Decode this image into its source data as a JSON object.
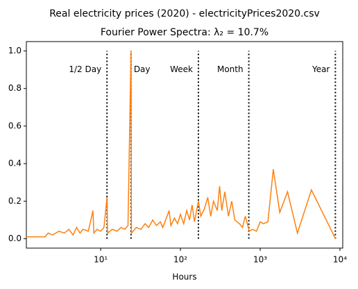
{
  "chart_data": {
    "type": "line",
    "suptitle": "Real electricity prices (2020) - electricityPrices2020.csv",
    "title": "Fourier Power Spectra: λ₂ = 10.7%",
    "x_label": "Hours",
    "x_scale": "log",
    "xlim": [
      1.17,
      10840
    ],
    "xticks": [
      {
        "value": 10,
        "label": "10¹"
      },
      {
        "value": 100,
        "label": "10²"
      },
      {
        "value": 1000,
        "label": "10³"
      },
      {
        "value": 10000,
        "label": "10⁴"
      }
    ],
    "ylim": [
      -0.05,
      1.05
    ],
    "yticks": [
      {
        "value": 0,
        "label": "0.0"
      },
      0.2,
      0.4,
      0.6,
      0.8,
      {
        "value": 1,
        "label": "1.0"
      }
    ],
    "grid": false,
    "vlines": [
      {
        "x": 12,
        "label": "1/2 Day"
      },
      {
        "x": 24,
        "label": "Day"
      },
      {
        "x": 168,
        "label": "Week"
      },
      {
        "x": 720,
        "label": "Month"
      },
      {
        "x": 8760,
        "label": "Year"
      }
    ],
    "series": [
      {
        "color": "#ff7f0e",
        "x": [
          1.17,
          2,
          2.2,
          2.5,
          3,
          3.5,
          4,
          4.5,
          5,
          5.5,
          6,
          7,
          8,
          8.2,
          9,
          10,
          11,
          12,
          12.2,
          14,
          16,
          18,
          20,
          22,
          24,
          24.3,
          28,
          32,
          36,
          40,
          45,
          50,
          56,
          60,
          68,
          72,
          76,
          84,
          92,
          100,
          110,
          120,
          130,
          140,
          150,
          168,
          180,
          200,
          220,
          240,
          260,
          290,
          310,
          330,
          360,
          400,
          440,
          480,
          550,
          600,
          650,
          730,
          800,
          900,
          1000,
          1100,
          1250,
          1460,
          1760,
          2200,
          2930,
          4390,
          8784
        ],
        "values": [
          0.01,
          0.01,
          0.03,
          0.02,
          0.04,
          0.03,
          0.05,
          0.02,
          0.06,
          0.03,
          0.05,
          0.04,
          0.15,
          0.03,
          0.05,
          0.04,
          0.06,
          0.22,
          0.03,
          0.05,
          0.04,
          0.06,
          0.05,
          0.07,
          1.0,
          0.03,
          0.06,
          0.05,
          0.08,
          0.06,
          0.1,
          0.07,
          0.09,
          0.06,
          0.12,
          0.15,
          0.07,
          0.11,
          0.08,
          0.13,
          0.08,
          0.15,
          0.1,
          0.18,
          0.09,
          0.2,
          0.12,
          0.16,
          0.22,
          0.12,
          0.2,
          0.15,
          0.28,
          0.15,
          0.25,
          0.12,
          0.2,
          0.1,
          0.08,
          0.06,
          0.12,
          0.04,
          0.05,
          0.04,
          0.09,
          0.08,
          0.09,
          0.37,
          0.14,
          0.25,
          0.03,
          0.26,
          0.0
        ]
      }
    ]
  }
}
